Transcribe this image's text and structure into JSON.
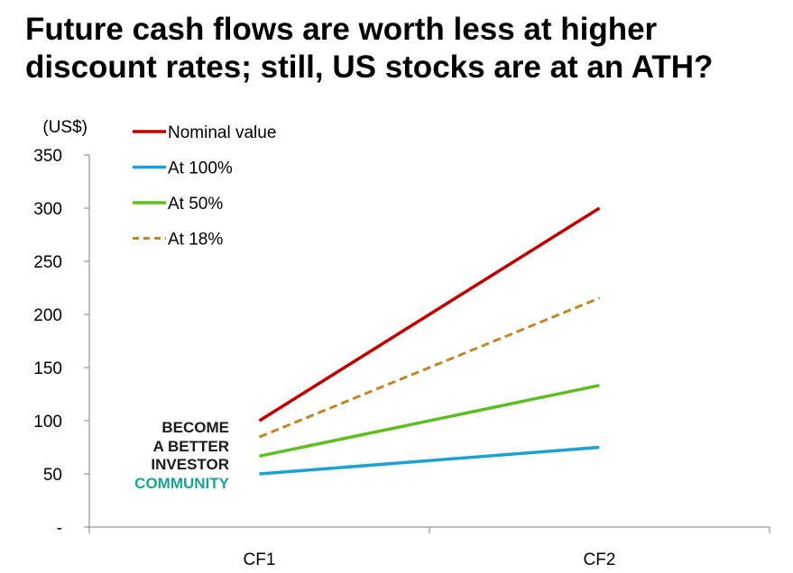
{
  "title": {
    "line1": "Future cash flows are worth less at higher",
    "line2": "discount rates; still, US stocks are at an ATH?"
  },
  "logo": {
    "line1": "BECOME",
    "line2": "A BETTER",
    "line3": "INVESTOR",
    "line4": "COMMUNITY",
    "color_dark": "#1a1a1a",
    "color_accent": "#1aa396"
  },
  "chart_data": {
    "type": "line",
    "unit_label": "(US$)",
    "categories": [
      "CF1",
      "CF2"
    ],
    "y_ticks": [
      {
        "value": 0,
        "label": "-"
      },
      {
        "value": 50,
        "label": "50"
      },
      {
        "value": 100,
        "label": "100"
      },
      {
        "value": 150,
        "label": "150"
      },
      {
        "value": 200,
        "label": "200"
      },
      {
        "value": 250,
        "label": "250"
      },
      {
        "value": 300,
        "label": "300"
      },
      {
        "value": 350,
        "label": "350"
      }
    ],
    "ylim": [
      0,
      350
    ],
    "grid": false,
    "legend_position": "top-left",
    "series": [
      {
        "name": "Nominal value",
        "values": [
          100,
          300
        ],
        "color": "#c00000",
        "dash": false
      },
      {
        "name": "At 100%",
        "values": [
          50,
          75
        ],
        "color": "#1ba1d4",
        "dash": false
      },
      {
        "name": "At 50%",
        "values": [
          66.7,
          133.3
        ],
        "color": "#5cbf1f",
        "dash": false
      },
      {
        "name": "At 18%",
        "values": [
          84.7,
          215.4
        ],
        "color": "#c0862a",
        "dash": true
      }
    ]
  }
}
